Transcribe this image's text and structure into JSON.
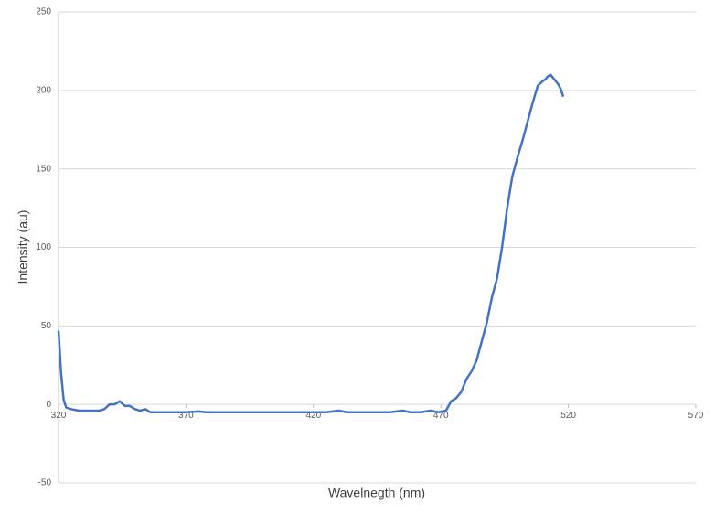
{
  "chart_data": {
    "type": "line",
    "x_label": "Wavelnegth (nm)",
    "y_label": "Intensity (au)",
    "x": [
      320,
      321,
      322,
      323,
      325,
      328,
      330,
      333,
      336,
      338,
      340,
      342,
      344,
      346,
      348,
      350,
      352,
      354,
      356,
      360,
      365,
      370,
      375,
      378,
      385,
      395,
      405,
      415,
      425,
      430,
      433,
      440,
      450,
      455,
      458,
      462,
      466,
      469,
      472,
      474,
      476,
      478,
      480,
      482,
      484,
      486,
      488,
      490,
      492,
      494,
      496,
      498,
      500,
      502,
      504,
      506,
      508,
      510,
      511,
      512,
      513,
      514,
      515,
      516,
      517,
      518
    ],
    "series": [
      {
        "name": "Intensity",
        "color": "#4472c4",
        "values": [
          47,
          20,
          3,
          -2,
          -3,
          -4,
          -4,
          -4,
          -4,
          -3,
          0,
          0,
          2,
          -1,
          -1,
          -3,
          -4,
          -3,
          -5,
          -5,
          -5,
          -5,
          -4.5,
          -5,
          -5,
          -5,
          -5,
          -5,
          -5,
          -4,
          -5,
          -5,
          -5,
          -4,
          -5,
          -5,
          -4,
          -5,
          -4,
          2,
          4,
          8,
          16,
          21,
          28,
          40,
          52,
          68,
          80,
          100,
          125,
          145,
          157,
          168,
          180,
          192,
          203,
          206,
          207,
          209,
          210,
          208,
          206,
          204,
          201,
          196
        ]
      }
    ],
    "xlim": [
      320,
      570
    ],
    "xticks": [
      320,
      370,
      420,
      470,
      520,
      570
    ],
    "ylim": [
      -50,
      250
    ],
    "yticks": [
      -50,
      0,
      50,
      100,
      150,
      200,
      250
    ],
    "grid": true
  }
}
